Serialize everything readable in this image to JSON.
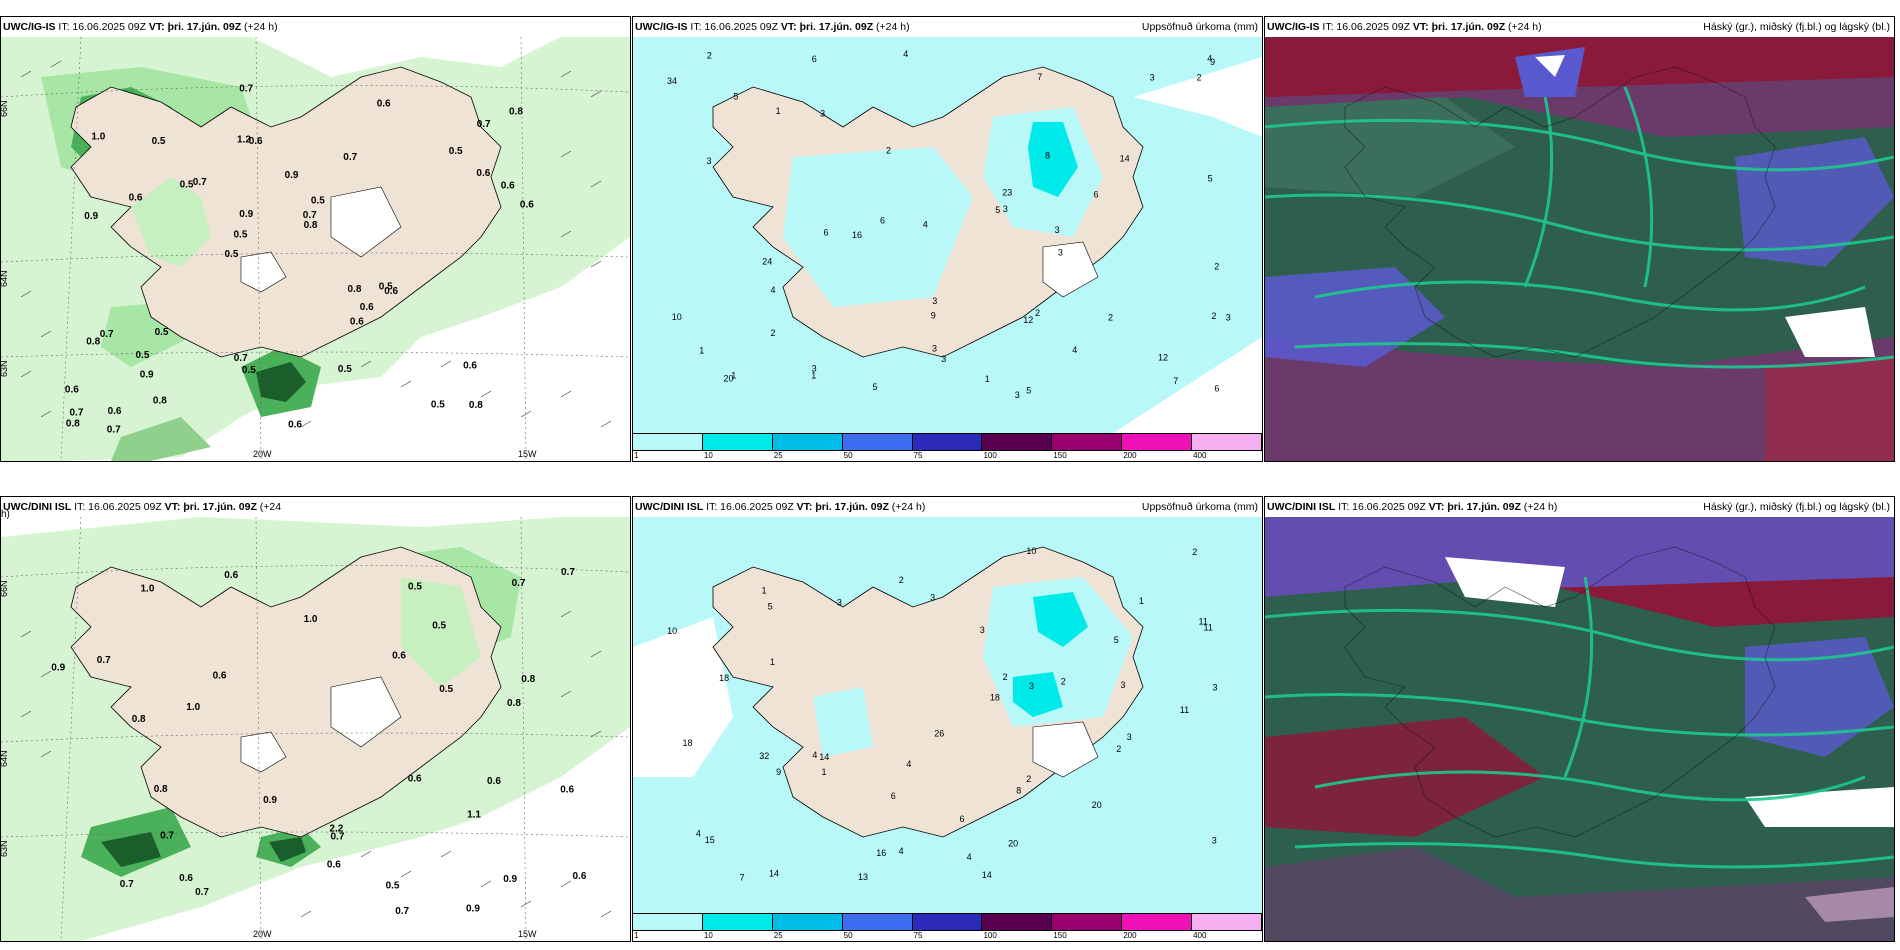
{
  "panels": [
    {
      "id": "p1",
      "model": "UWC/IG-IS",
      "it": "IT: 16.06.2025 09Z",
      "vt_label": "VT:",
      "vt": "þri. 17.jún. 09Z",
      "lead": "(+24 h)",
      "right": "",
      "lat_labels": [
        "66N",
        "64N",
        "63N"
      ],
      "lon_labels": [
        "20W",
        "15W"
      ],
      "values": [
        "0.8",
        "0.9",
        "0.7",
        "0.5",
        "0.7",
        "0.6",
        "1.2",
        "0.9",
        "0.7",
        "0.7",
        "0.6",
        "0.9",
        "0.6",
        "0.5",
        "0.6",
        "1.0",
        "0.7",
        "0.6",
        "0.8",
        "0.6",
        "0.5",
        "0.7",
        "0.9",
        "0.5",
        "0.6",
        "0.5",
        "0.5",
        "0.6",
        "0.5",
        "0.6",
        "0.5",
        "0.6",
        "0.6",
        "0.8",
        "0.6",
        "0.7",
        "0.7",
        "0.5",
        "0.8",
        "0.8",
        "0.5",
        "0.8",
        "0.6",
        "0.5",
        "0.5",
        "0.7",
        "0.8"
      ]
    },
    {
      "id": "p2",
      "model": "UWC/IG-IS",
      "it": "IT: 16.06.2025 09Z",
      "vt_label": "VT:",
      "vt": "þri. 17.jún. 09Z",
      "lead": "(+24 h)",
      "right": "Uppsöfnuð úrkoma (mm)",
      "values": [
        "5",
        "3",
        "3",
        "4",
        "6",
        "5",
        "6",
        "7",
        "4",
        "2",
        "3",
        "3",
        "6",
        "9",
        "7",
        "5",
        "3",
        "1",
        "16",
        "34",
        "12",
        "9",
        "23",
        "20",
        "14",
        "24",
        "10",
        "4",
        "2",
        "3",
        "4",
        "5",
        "3",
        "2",
        "2",
        "3",
        "2",
        "1",
        "8",
        "12",
        "3",
        "6",
        "3",
        "1",
        "3",
        "2",
        "2",
        "1",
        "1",
        "3",
        "4",
        "5",
        "6",
        "2"
      ],
      "colorbar": [
        {
          "label": "1",
          "color": "#b8f8f8"
        },
        {
          "label": "10",
          "color": "#00eaea"
        },
        {
          "label": "25",
          "color": "#00bde8"
        },
        {
          "label": "50",
          "color": "#3b6ef0"
        },
        {
          "label": "75",
          "color": "#2c2ab8"
        },
        {
          "label": "100",
          "color": "#5a0050"
        },
        {
          "label": "150",
          "color": "#9a006e"
        },
        {
          "label": "200",
          "color": "#f010b8"
        },
        {
          "label": "400",
          "color": "#f4b0f0"
        }
      ]
    },
    {
      "id": "p3",
      "model": "UWC/IG-IS",
      "it": "IT: 16.06.2025 09Z",
      "vt_label": "VT:",
      "vt": "þri. 17.jún. 09Z",
      "lead": "(+24 h)",
      "right": "Háský (gr.), miðský (fj.bl.) og lágský (bl.)"
    },
    {
      "id": "p4",
      "model": "UWC/DINI ISL",
      "it": "IT: 16.06.2025 09Z",
      "vt_label": "VT:",
      "vt": "þri. 17.jún. 09Z",
      "lead": "(+24",
      "lead2": "h)",
      "right": "",
      "lat_labels": [
        "66N",
        "64N",
        "63N"
      ],
      "lon_labels": [
        "20W",
        "15W"
      ],
      "values": [
        "0.6",
        "0.9",
        "0.7",
        "0.7",
        "2.2",
        "0.6",
        "0.6",
        "0.5",
        "0.7",
        "0.8",
        "0.6",
        "0.7",
        "0.9",
        "0.5",
        "0.7",
        "1.0",
        "0.7",
        "0.6",
        "0.5",
        "1.0",
        "0.7",
        "0.6",
        "0.9",
        "0.8",
        "0.7",
        "0.6",
        "1.1",
        "0.9",
        "0.8",
        "1.0",
        "0.6",
        "0.8",
        "0.6",
        "0.5"
      ]
    },
    {
      "id": "p5",
      "model": "UWC/DINI ISL",
      "it": "IT: 16.06.2025 09Z",
      "vt_label": "VT:",
      "vt": "þri. 17.jún. 09Z",
      "lead": "(+24 h)",
      "right": "Uppsöfnuð úrkoma (mm)",
      "values": [
        "2",
        "4",
        "4",
        "3",
        "3",
        "2",
        "10",
        "1",
        "2",
        "3",
        "16",
        "14",
        "11",
        "18",
        "32",
        "11",
        "9",
        "8",
        "14",
        "20",
        "11",
        "7",
        "18",
        "26",
        "15",
        "18",
        "14",
        "13",
        "20",
        "6",
        "4",
        "3",
        "2",
        "1",
        "3",
        "2",
        "4",
        "3",
        "10",
        "3",
        "2",
        "1",
        "1",
        "3",
        "5",
        "6",
        "5",
        "4"
      ],
      "colorbar": [
        {
          "label": "1",
          "color": "#b8f8f8"
        },
        {
          "label": "10",
          "color": "#00eaea"
        },
        {
          "label": "25",
          "color": "#00bde8"
        },
        {
          "label": "50",
          "color": "#3b6ef0"
        },
        {
          "label": "75",
          "color": "#2c2ab8"
        },
        {
          "label": "100",
          "color": "#5a0050"
        },
        {
          "label": "150",
          "color": "#9a006e"
        },
        {
          "label": "200",
          "color": "#f010b8"
        },
        {
          "label": "400",
          "color": "#f4b0f0"
        }
      ]
    },
    {
      "id": "p6",
      "model": "UWC/DINI ISL",
      "it": "IT: 16.06.2025 09Z",
      "vt_label": "VT:",
      "vt": "þri. 17.jún. 09Z",
      "lead": "(+24 h)",
      "right": "Háský (gr.), miðský (fj.bl.) og lágský (bl.)"
    }
  ],
  "colors": {
    "land": "#efe3d6",
    "precip_light": "#c6f2c2",
    "precip_mid": "#8fdb92",
    "precip_dark": "#1f7a3a",
    "sea_cyan": "#b8f8f8",
    "cloud_low": "#2e5e4e",
    "cloud_mid": "#5a5ad0",
    "cloud_high": "#8a1a3a",
    "cloud_green": "#1ec890"
  }
}
